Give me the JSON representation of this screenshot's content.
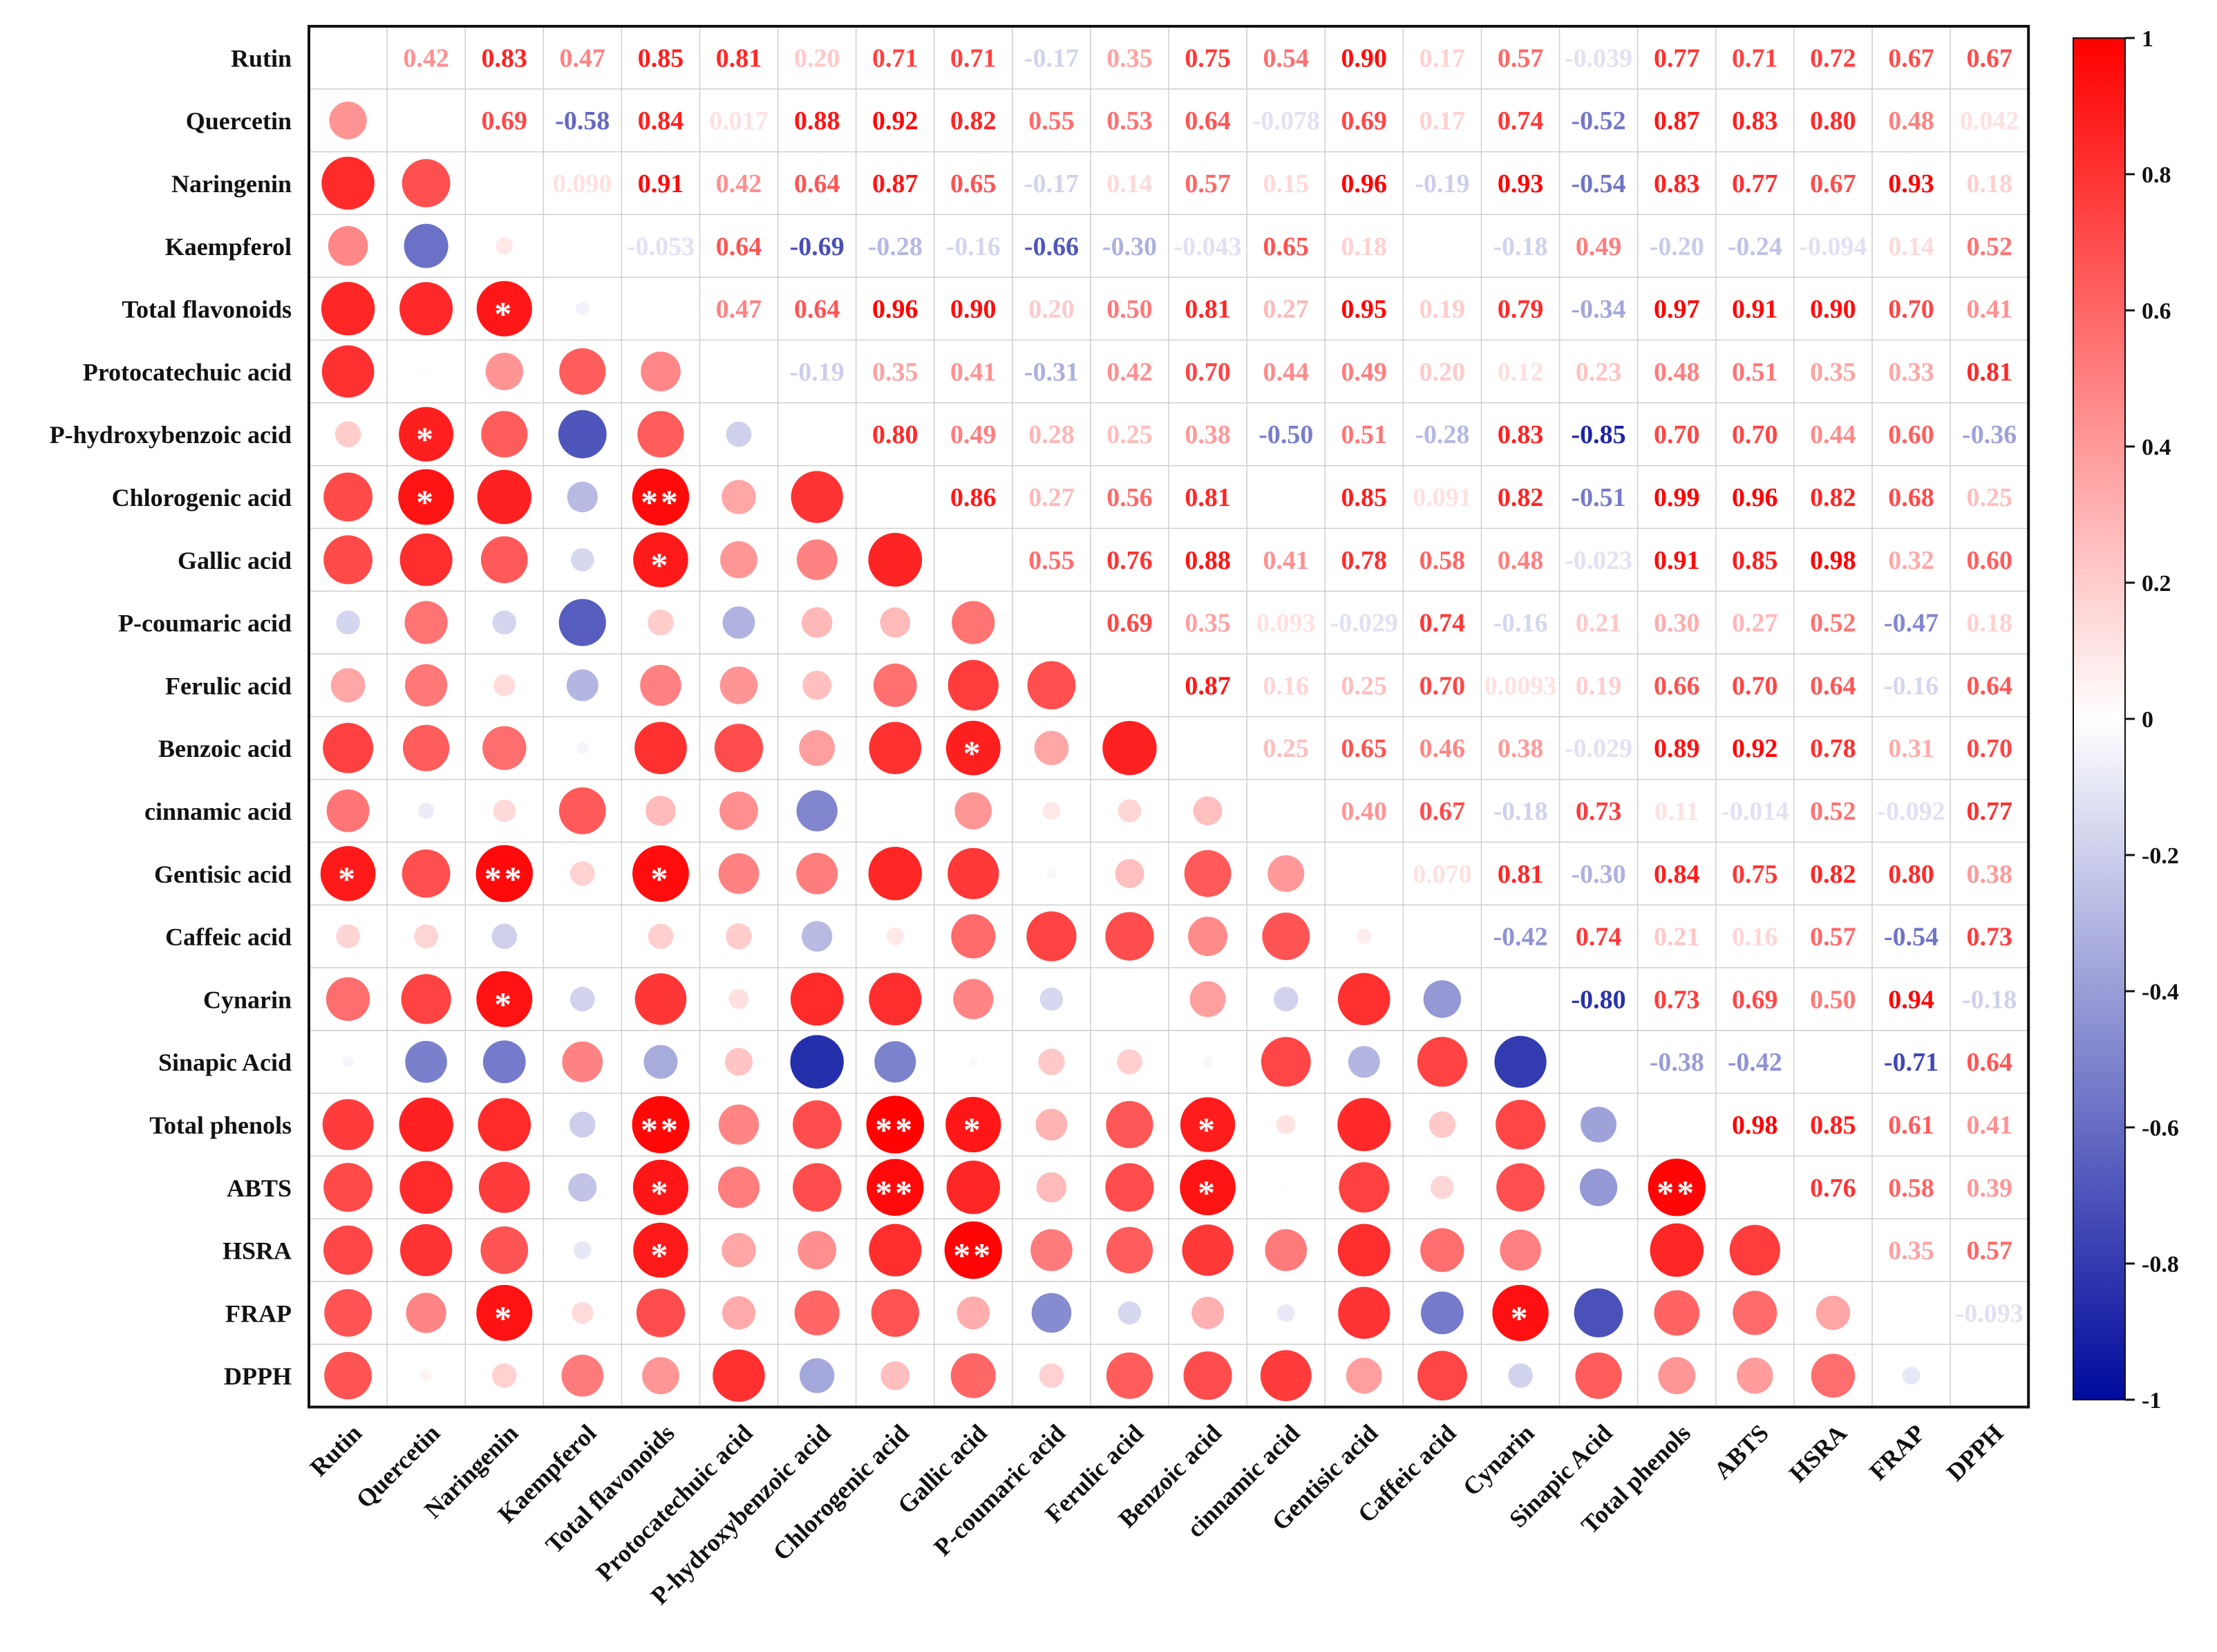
{
  "chart_data": {
    "type": "heatmap",
    "title": "",
    "variables": [
      "Rutin",
      "Quercetin",
      "Naringenin",
      "Kaempferol",
      "Total flavonoids",
      "Protocatechuic acid",
      "P-hydroxybenzoic acid",
      "Chlorogenic acid",
      "Gallic acid",
      "P-coumaric acid",
      "Ferulic acid",
      "Benzoic acid",
      "cinnamic acid",
      "Gentisic acid",
      "Caffeic acid",
      "Cynarin",
      "Sinapic Acid",
      "Total phenols",
      "ABTS",
      "HSRA",
      "FRAP",
      "DPPH"
    ],
    "upper_labels": [
      [
        null,
        "0.42",
        "0.83",
        "0.47",
        "0.85",
        "0.81",
        "0.20",
        "0.71",
        "0.71",
        "-0.17",
        "0.35",
        "0.75",
        "0.54",
        "0.90",
        "0.17",
        "0.57",
        "-0.039",
        "0.77",
        "0.71",
        "0.72",
        "0.67",
        "0.67"
      ],
      [
        null,
        null,
        "0.69",
        "-0.58",
        "0.84",
        "0.017",
        "0.88",
        "0.92",
        "0.82",
        "0.55",
        "0.53",
        "0.64",
        "-0.078",
        "0.69",
        "0.17",
        "0.74",
        "-0.52",
        "0.87",
        "0.83",
        "0.80",
        "0.48",
        "0.042"
      ],
      [
        null,
        null,
        null,
        "0.090",
        "0.91",
        "0.42",
        "0.64",
        "0.87",
        "0.65",
        "-0.17",
        "0.14",
        "0.57",
        "0.15",
        "0.96",
        "-0.19",
        "0.93",
        "-0.54",
        "0.83",
        "0.77",
        "0.67",
        "0.93",
        "0.18"
      ],
      [
        null,
        null,
        null,
        null,
        "-0.053",
        "0.64",
        "-0.69",
        "-0.28",
        "-0.16",
        "-0.66",
        "-0.30",
        "-0.043",
        "0.65",
        "0.18",
        null,
        "-0.18",
        "0.49",
        "-0.20",
        "-0.24",
        "-0.094",
        "0.14",
        "0.52"
      ],
      [
        null,
        null,
        null,
        null,
        null,
        "0.47",
        "0.64",
        "0.96",
        "0.90",
        "0.20",
        "0.50",
        "0.81",
        "0.27",
        "0.95",
        "0.19",
        "0.79",
        "-0.34",
        "0.97",
        "0.91",
        "0.90",
        "0.70",
        "0.41"
      ],
      [
        null,
        null,
        null,
        null,
        null,
        null,
        "-0.19",
        "0.35",
        "0.41",
        "-0.31",
        "0.42",
        "0.70",
        "0.44",
        "0.49",
        "0.20",
        "0.12",
        "0.23",
        "0.48",
        "0.51",
        "0.35",
        "0.33",
        "0.81"
      ],
      [
        null,
        null,
        null,
        null,
        null,
        null,
        null,
        "0.80",
        "0.49",
        "0.28",
        "0.25",
        "0.38",
        "-0.50",
        "0.51",
        "-0.28",
        "0.83",
        "-0.85",
        "0.70",
        "0.70",
        "0.44",
        "0.60",
        "-0.36"
      ],
      [
        null,
        null,
        null,
        null,
        null,
        null,
        null,
        null,
        "0.86",
        "0.27",
        "0.56",
        "0.81",
        null,
        "0.85",
        "0.091",
        "0.82",
        "-0.51",
        "0.99",
        "0.96",
        "0.82",
        "0.68",
        "0.25"
      ],
      [
        null,
        null,
        null,
        null,
        null,
        null,
        null,
        null,
        null,
        "0.55",
        "0.76",
        "0.88",
        "0.41",
        "0.78",
        "0.58",
        "0.48",
        "-0.023",
        "0.91",
        "0.85",
        "0.98",
        "0.32",
        "0.60"
      ],
      [
        null,
        null,
        null,
        null,
        null,
        null,
        null,
        null,
        null,
        null,
        "0.69",
        "0.35",
        "0.093",
        "-0.029",
        "0.74",
        "-0.16",
        "0.21",
        "0.30",
        "0.27",
        "0.52",
        "-0.47",
        "0.18"
      ],
      [
        null,
        null,
        null,
        null,
        null,
        null,
        null,
        null,
        null,
        null,
        null,
        "0.87",
        "0.16",
        "0.25",
        "0.70",
        "0.0093",
        "0.19",
        "0.66",
        "0.70",
        "0.64",
        "-0.16",
        "0.64"
      ],
      [
        null,
        null,
        null,
        null,
        null,
        null,
        null,
        null,
        null,
        null,
        null,
        null,
        "0.25",
        "0.65",
        "0.46",
        "0.38",
        "-0.029",
        "0.89",
        "0.92",
        "0.78",
        "0.31",
        "0.70"
      ],
      [
        null,
        null,
        null,
        null,
        null,
        null,
        null,
        null,
        null,
        null,
        null,
        null,
        null,
        "0.40",
        "0.67",
        "-0.18",
        "0.73",
        "0.11",
        "-0.014",
        "0.52",
        "-0.092",
        "0.77"
      ],
      [
        null,
        null,
        null,
        null,
        null,
        null,
        null,
        null,
        null,
        null,
        null,
        null,
        null,
        null,
        "0.070",
        "0.81",
        "-0.30",
        "0.84",
        "0.75",
        "0.82",
        "0.80",
        "0.38"
      ],
      [
        null,
        null,
        null,
        null,
        null,
        null,
        null,
        null,
        null,
        null,
        null,
        null,
        null,
        null,
        null,
        "-0.42",
        "0.74",
        "0.21",
        "0.16",
        "0.57",
        "-0.54",
        "0.73"
      ],
      [
        null,
        null,
        null,
        null,
        null,
        null,
        null,
        null,
        null,
        null,
        null,
        null,
        null,
        null,
        null,
        null,
        "-0.80",
        "0.73",
        "0.69",
        "0.50",
        "0.94",
        "-0.18"
      ],
      [
        null,
        null,
        null,
        null,
        null,
        null,
        null,
        null,
        null,
        null,
        null,
        null,
        null,
        null,
        null,
        null,
        null,
        "-0.38",
        "-0.42",
        null,
        "-0.71",
        "0.64"
      ],
      [
        null,
        null,
        null,
        null,
        null,
        null,
        null,
        null,
        null,
        null,
        null,
        null,
        null,
        null,
        null,
        null,
        null,
        null,
        "0.98",
        "0.85",
        "0.61",
        "0.41"
      ],
      [
        null,
        null,
        null,
        null,
        null,
        null,
        null,
        null,
        null,
        null,
        null,
        null,
        null,
        null,
        null,
        null,
        null,
        null,
        null,
        "0.76",
        "0.58",
        "0.39"
      ],
      [
        null,
        null,
        null,
        null,
        null,
        null,
        null,
        null,
        null,
        null,
        null,
        null,
        null,
        null,
        null,
        null,
        null,
        null,
        null,
        null,
        "0.35",
        "0.57"
      ],
      [
        null,
        null,
        null,
        null,
        null,
        null,
        null,
        null,
        null,
        null,
        null,
        null,
        null,
        null,
        null,
        null,
        null,
        null,
        null,
        null,
        null,
        "-0.093"
      ],
      [
        null,
        null,
        null,
        null,
        null,
        null,
        null,
        null,
        null,
        null,
        null,
        null,
        null,
        null,
        null,
        null,
        null,
        null,
        null,
        null,
        null,
        null
      ]
    ],
    "significance": [
      {
        "row": 4,
        "col": 2,
        "mark": "*"
      },
      {
        "row": 6,
        "col": 1,
        "mark": "*"
      },
      {
        "row": 7,
        "col": 1,
        "mark": "*"
      },
      {
        "row": 7,
        "col": 4,
        "mark": "**"
      },
      {
        "row": 8,
        "col": 4,
        "mark": "*"
      },
      {
        "row": 11,
        "col": 8,
        "mark": "*"
      },
      {
        "row": 13,
        "col": 0,
        "mark": "*"
      },
      {
        "row": 13,
        "col": 2,
        "mark": "**"
      },
      {
        "row": 13,
        "col": 4,
        "mark": "*"
      },
      {
        "row": 15,
        "col": 2,
        "mark": "*"
      },
      {
        "row": 17,
        "col": 4,
        "mark": "**"
      },
      {
        "row": 17,
        "col": 7,
        "mark": "**"
      },
      {
        "row": 17,
        "col": 8,
        "mark": "*"
      },
      {
        "row": 17,
        "col": 11,
        "mark": "*"
      },
      {
        "row": 18,
        "col": 4,
        "mark": "*"
      },
      {
        "row": 18,
        "col": 7,
        "mark": "**"
      },
      {
        "row": 18,
        "col": 11,
        "mark": "*"
      },
      {
        "row": 18,
        "col": 17,
        "mark": "**"
      },
      {
        "row": 19,
        "col": 4,
        "mark": "*"
      },
      {
        "row": 19,
        "col": 8,
        "mark": "**"
      },
      {
        "row": 20,
        "col": 2,
        "mark": "*"
      },
      {
        "row": 20,
        "col": 15,
        "mark": "*"
      }
    ],
    "colorbar": {
      "range": [
        -1,
        1
      ],
      "ticks": [
        "1",
        "0.8",
        "0.6",
        "0.4",
        "0.2",
        "0",
        "-0.2",
        "-0.4",
        "-0.6",
        "-0.8",
        "-1"
      ],
      "colors": {
        "negative": "#000a9c",
        "middle": "#ffffff",
        "positive": "#ff0000"
      }
    },
    "xlabel": "",
    "ylabel": ""
  }
}
